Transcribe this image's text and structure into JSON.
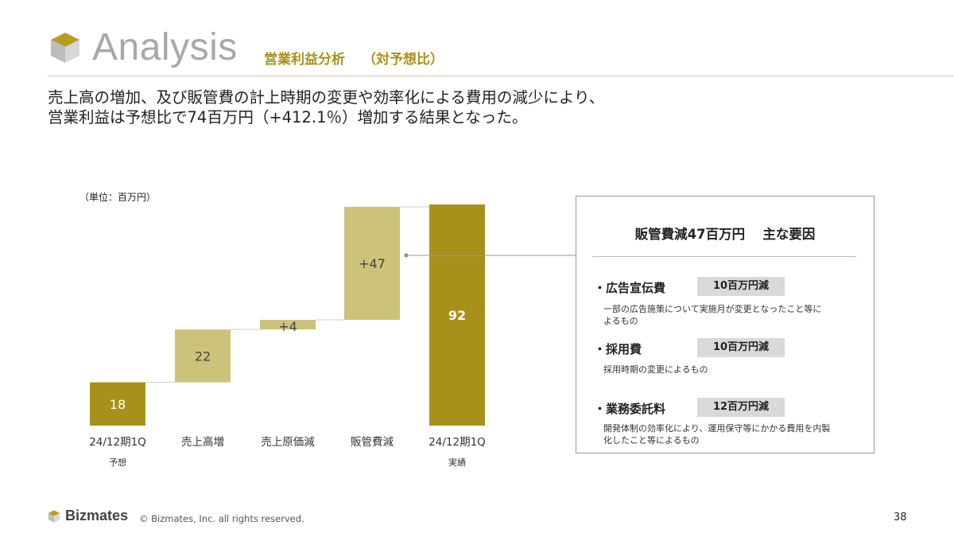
{
  "header": {
    "title": "Analysis",
    "subtitle": "営業利益分析",
    "subtitle_paren": "（対予想比）"
  },
  "headline": {
    "line1": "売上高の増加、及び販管費の計上時期の変更や効率化による費用の減少により、",
    "line2": "営業利益は予想比で74百万円（+412.1％）増加する結果となった。"
  },
  "colors": {
    "gold_dark": "#a8911a",
    "gold_light": "#cdc279",
    "grey": "#d9d9d9"
  },
  "chart_data": {
    "type": "bar",
    "subtype": "waterfall",
    "unit_label": "（単位：百万円）",
    "categories": [
      "24/12期1Q",
      "売上高増",
      "売上原価減",
      "販管費減",
      "24/12期1Q"
    ],
    "category_sublabels": [
      "予想",
      "",
      "",
      "",
      "実績"
    ],
    "value_labels": [
      "18",
      "22",
      "+4",
      "+47",
      "92"
    ],
    "values": [
      18,
      22,
      4,
      47,
      92
    ],
    "kinds": [
      "total",
      "increase",
      "increase",
      "increase",
      "total"
    ],
    "ylim": [
      0,
      92
    ],
    "grid": false,
    "legend": "none"
  },
  "panel": {
    "title": "販管費減47百万円　 主な要因",
    "factors": [
      {
        "name": "・広告宣伝費",
        "amount": "10百万円減",
        "desc": [
          "一部の広告施策について実施月が変更となったこと等に",
          "よるもの"
        ]
      },
      {
        "name": "・採用費",
        "amount": "10百万円減",
        "desc": [
          "採用時期の変更によるもの"
        ]
      },
      {
        "name": "・業務委託料",
        "amount": "12百万円減",
        "desc": [
          "開発体制の効率化により、運用保守等にかかる費用を内製",
          "化したこと等によるもの"
        ]
      }
    ]
  },
  "footer": {
    "brand": "Bizmates",
    "copyright": "© Bizmates, Inc. all rights reserved.",
    "page": "38"
  }
}
